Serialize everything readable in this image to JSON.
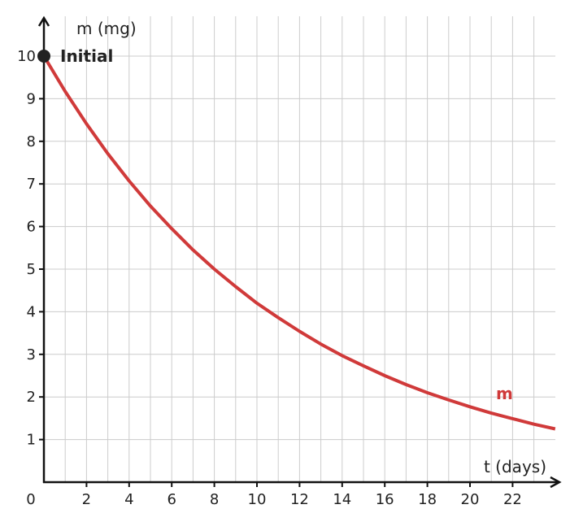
{
  "chart_data": {
    "type": "line",
    "xlabel": "t (days)",
    "ylabel": "m (mg)",
    "origin_label": "0",
    "xlim": [
      0,
      24
    ],
    "ylim": [
      0,
      11
    ],
    "x_ticks": [
      2,
      4,
      6,
      8,
      10,
      12,
      14,
      16,
      18,
      20,
      22
    ],
    "y_ticks": [
      1,
      2,
      3,
      4,
      5,
      6,
      7,
      8,
      9,
      10
    ],
    "grid": true,
    "series": [
      {
        "name": "m",
        "color": "#d03a3a",
        "x": [
          0,
          1,
          2,
          3,
          4,
          5,
          6,
          7,
          8,
          9,
          10,
          11,
          12,
          13,
          14,
          15,
          16,
          17,
          18,
          19,
          20,
          21,
          22,
          23,
          24
        ],
        "y": [
          10,
          9.17,
          8.41,
          7.71,
          7.07,
          6.48,
          5.95,
          5.45,
          5.0,
          4.59,
          4.2,
          3.86,
          3.54,
          3.24,
          2.97,
          2.73,
          2.5,
          2.29,
          2.1,
          1.93,
          1.77,
          1.62,
          1.49,
          1.36,
          1.25
        ]
      }
    ],
    "points": [
      {
        "label": "Initial",
        "x": 0,
        "y": 10,
        "color": "#222222"
      }
    ]
  }
}
